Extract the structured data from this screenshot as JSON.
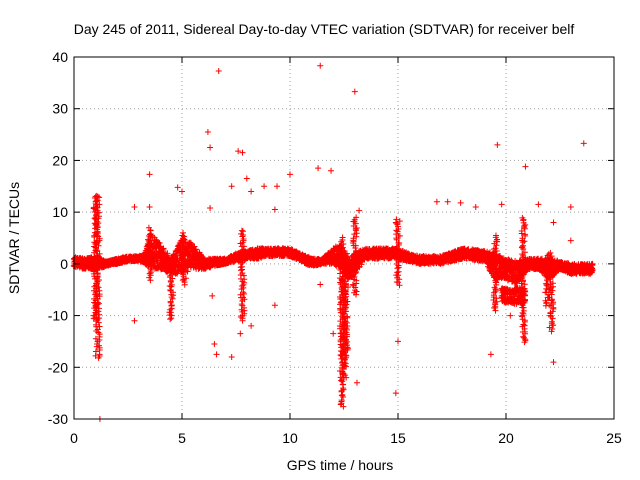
{
  "chart_data": {
    "type": "scatter",
    "title": "Day 245 of 2011, Sidereal Day-to-day VTEC variation (SDTVAR) for receiver belf",
    "xlabel": "GPS time / hours",
    "ylabel": "SDTVAR / TECUs",
    "xlim": [
      0,
      25
    ],
    "ylim": [
      -30,
      40
    ],
    "xticks": [
      0,
      5,
      10,
      15,
      20,
      25
    ],
    "yticks": [
      -30,
      -20,
      -10,
      0,
      10,
      20,
      30,
      40
    ],
    "grid": true,
    "marker": "+",
    "series_color": "#ff0000",
    "series": [
      {
        "name": "SDTVAR",
        "band_start_hours": 0,
        "band_end_hours": 24,
        "baseline_band": [
          [
            0.0,
            -0.5,
            1.5
          ],
          [
            0.5,
            -1.0,
            1.0
          ],
          [
            1.0,
            -1.0,
            1.5
          ],
          [
            1.5,
            -0.5,
            0.5
          ],
          [
            2.0,
            0.0,
            1.0
          ],
          [
            2.5,
            0.5,
            1.5
          ],
          [
            3.0,
            0.5,
            1.5
          ],
          [
            3.3,
            0.0,
            2.0
          ],
          [
            3.5,
            -1.0,
            6.5
          ],
          [
            4.0,
            -1.0,
            4.0
          ],
          [
            4.5,
            -2.0,
            1.0
          ],
          [
            5.0,
            -2.0,
            5.0
          ],
          [
            5.5,
            -1.0,
            4.0
          ],
          [
            6.0,
            -1.0,
            1.0
          ],
          [
            6.5,
            -0.5,
            1.0
          ],
          [
            7.0,
            0.0,
            1.0
          ],
          [
            7.5,
            0.5,
            2.0
          ],
          [
            8.0,
            1.0,
            2.5
          ],
          [
            8.5,
            1.0,
            3.0
          ],
          [
            9.0,
            1.5,
            3.0
          ],
          [
            10.0,
            1.5,
            3.0
          ],
          [
            10.5,
            0.5,
            2.0
          ],
          [
            11.0,
            -0.5,
            1.0
          ],
          [
            11.5,
            0.0,
            1.0
          ],
          [
            12.0,
            0.0,
            3.0
          ],
          [
            12.3,
            -1.0,
            4.0
          ],
          [
            12.7,
            -3.0,
            1.0
          ],
          [
            13.0,
            -2.0,
            2.0
          ],
          [
            13.5,
            1.0,
            3.0
          ],
          [
            14.5,
            1.0,
            3.0
          ],
          [
            15.0,
            1.0,
            3.0
          ],
          [
            15.5,
            0.5,
            2.0
          ],
          [
            16.0,
            0.0,
            1.5
          ],
          [
            17.0,
            0.0,
            1.5
          ],
          [
            18.0,
            1.0,
            3.0
          ],
          [
            19.0,
            0.5,
            2.5
          ],
          [
            19.5,
            -3.0,
            2.0
          ],
          [
            20.0,
            -3.0,
            1.0
          ],
          [
            20.5,
            -4.0,
            0.5
          ],
          [
            21.0,
            -1.0,
            1.0
          ],
          [
            21.5,
            -1.0,
            1.0
          ],
          [
            22.0,
            -3.0,
            1.0
          ],
          [
            22.5,
            -1.0,
            0.5
          ],
          [
            23.0,
            -2.0,
            0.0
          ],
          [
            24.0,
            -2.0,
            0.0
          ]
        ],
        "streaks": [
          [
            12.4,
            -27.5,
            5.0
          ],
          [
            12.5,
            -22.0,
            3.0
          ],
          [
            12.6,
            -18.0,
            2.0
          ],
          [
            3.5,
            -3.0,
            7.0
          ],
          [
            4.5,
            -10.5,
            1.0
          ],
          [
            5.1,
            -4.0,
            6.0
          ],
          [
            7.8,
            -11.0,
            6.5
          ],
          [
            13.0,
            -6.0,
            9.0
          ],
          [
            20.8,
            -15.0,
            9.0
          ],
          [
            22.1,
            -13.0,
            2.0
          ],
          [
            1.0,
            -11.0,
            13.0
          ],
          [
            1.1,
            -18.0,
            13.0
          ],
          [
            19.5,
            -9.0,
            5.5
          ],
          [
            21.9,
            -8.0,
            2.0
          ],
          [
            15.0,
            -4.0,
            8.5
          ]
        ],
        "offset_block": [
          [
            19.8,
            -7.5,
            -4.5
          ],
          [
            20.2,
            -7.5,
            -5.0
          ],
          [
            20.6,
            -8.0,
            -4.5
          ],
          [
            20.9,
            -7.5,
            -4.5
          ]
        ],
        "outliers": [
          [
            1.2,
            -30.0
          ],
          [
            1.0,
            13.0
          ],
          [
            1.1,
            13.0
          ],
          [
            1.0,
            7.5
          ],
          [
            1.0,
            -8.0
          ],
          [
            1.0,
            -17.8
          ],
          [
            2.8,
            -11.0
          ],
          [
            2.8,
            11.0
          ],
          [
            3.5,
            17.3
          ],
          [
            3.5,
            11.0
          ],
          [
            4.5,
            -10.5
          ],
          [
            4.8,
            14.8
          ],
          [
            5.0,
            14.0
          ],
          [
            6.2,
            25.5
          ],
          [
            6.3,
            22.5
          ],
          [
            6.3,
            10.8
          ],
          [
            6.4,
            -6.2
          ],
          [
            6.5,
            -15.5
          ],
          [
            6.6,
            -17.5
          ],
          [
            6.7,
            37.3
          ],
          [
            7.3,
            -18.0
          ],
          [
            7.3,
            15.0
          ],
          [
            7.6,
            21.8
          ],
          [
            7.8,
            21.5
          ],
          [
            7.8,
            -10.0
          ],
          [
            7.7,
            -13.5
          ],
          [
            8.0,
            16.5
          ],
          [
            8.2,
            14.0
          ],
          [
            8.2,
            -12.0
          ],
          [
            8.8,
            15.0
          ],
          [
            9.3,
            -8.0
          ],
          [
            9.3,
            10.5
          ],
          [
            9.4,
            15.0
          ],
          [
            10.0,
            17.3
          ],
          [
            11.3,
            18.5
          ],
          [
            11.4,
            38.3
          ],
          [
            11.4,
            -4.0
          ],
          [
            11.9,
            18.0
          ],
          [
            12.0,
            -13.5
          ],
          [
            12.6,
            -22.0
          ],
          [
            13.0,
            33.3
          ],
          [
            13.1,
            -23.0
          ],
          [
            13.2,
            10.3
          ],
          [
            14.9,
            -25.0
          ],
          [
            14.9,
            8.0
          ],
          [
            15.0,
            -15.0
          ],
          [
            16.8,
            12.0
          ],
          [
            17.3,
            12.0
          ],
          [
            17.9,
            11.8
          ],
          [
            18.6,
            11.0
          ],
          [
            19.3,
            -17.5
          ],
          [
            19.5,
            -8.5
          ],
          [
            19.6,
            23.0
          ],
          [
            19.8,
            11.5
          ],
          [
            20.2,
            -10.0
          ],
          [
            20.9,
            18.8
          ],
          [
            20.9,
            -14.8
          ],
          [
            21.5,
            11.5
          ],
          [
            22.0,
            -8.0
          ],
          [
            22.2,
            -19.0
          ],
          [
            22.2,
            8.0
          ],
          [
            23.0,
            11.0
          ],
          [
            23.0,
            4.5
          ],
          [
            23.6,
            23.3
          ]
        ]
      }
    ]
  }
}
